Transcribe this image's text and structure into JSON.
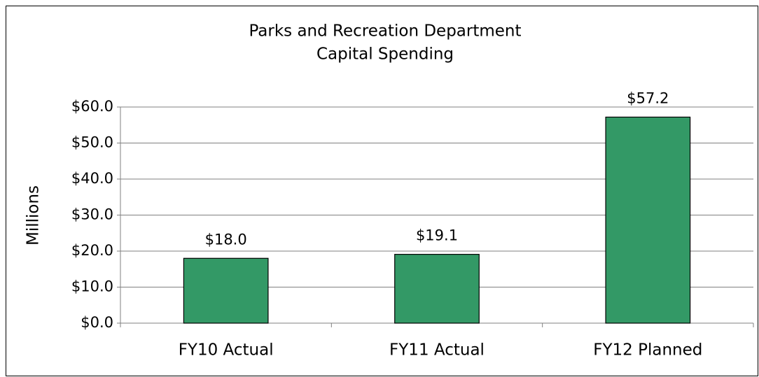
{
  "chart_data": {
    "type": "bar",
    "title": [
      "Parks and Recreation Department",
      "Capital Spending"
    ],
    "y_label": "Millions",
    "categories": [
      "FY10 Actual",
      "FY11 Actual",
      "FY12 Planned"
    ],
    "values": [
      18.0,
      19.1,
      57.2
    ],
    "value_labels": [
      "$18.0",
      "$19.1",
      "$57.2"
    ],
    "color": "#339966",
    "ylim": [
      0,
      60
    ],
    "yticks": [
      {
        "value": 0,
        "label": "$0.0"
      },
      {
        "value": 10,
        "label": "$10.0"
      },
      {
        "value": 20,
        "label": "$20.0"
      },
      {
        "value": 30,
        "label": "$30.0"
      },
      {
        "value": 40,
        "label": "$40.0"
      },
      {
        "value": 50,
        "label": "$50.0"
      },
      {
        "value": 60,
        "label": "$60.0"
      }
    ],
    "grid": true
  }
}
